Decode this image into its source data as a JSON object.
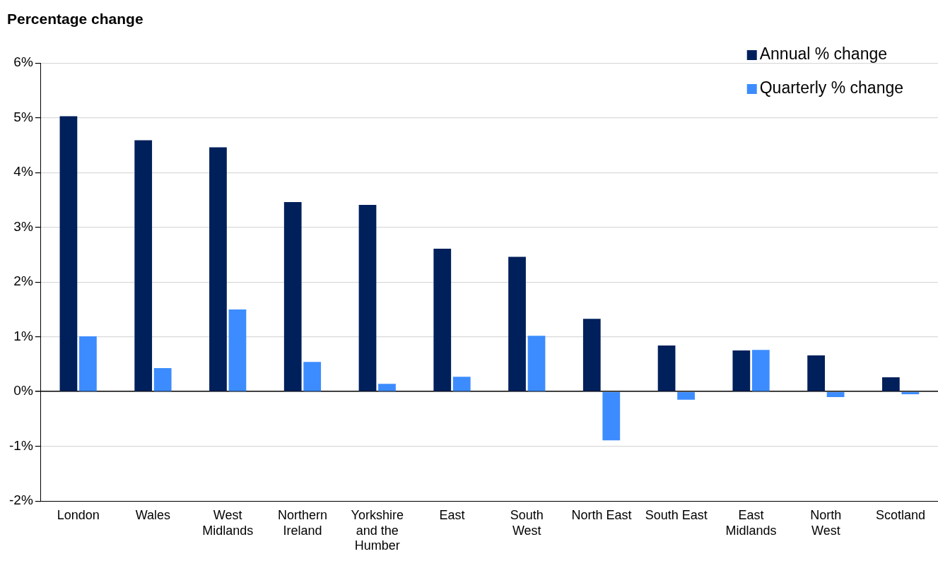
{
  "chart_data": {
    "type": "bar",
    "title": "Percentage change",
    "categories": [
      "London",
      "Wales",
      "West\nMidlands",
      "Northern\nIreland",
      "Yorkshire\nand the\nHumber",
      "East",
      "South\nWest",
      "North East",
      "South East",
      "East\nMidlands",
      "North\nWest",
      "Scotland"
    ],
    "series": [
      {
        "name": "Annual % change",
        "color": "#00205b",
        "values": [
          5.03,
          4.59,
          4.46,
          3.46,
          3.41,
          2.61,
          2.46,
          1.33,
          0.84,
          0.75,
          0.66,
          0.26
        ]
      },
      {
        "name": "Quarterly % change",
        "color": "#3c8cff",
        "values": [
          1.01,
          0.43,
          1.5,
          0.54,
          0.14,
          0.27,
          1.02,
          -0.89,
          -0.15,
          0.76,
          -0.1,
          -0.05
        ]
      }
    ],
    "ylim": [
      -2,
      6
    ],
    "yticks": [
      {
        "value": -2,
        "label": "-2%"
      },
      {
        "value": -1,
        "label": "-1%"
      },
      {
        "value": 0,
        "label": "0%"
      },
      {
        "value": 1,
        "label": "1%"
      },
      {
        "value": 2,
        "label": "2%"
      },
      {
        "value": 3,
        "label": "3%"
      },
      {
        "value": 4,
        "label": "4%"
      },
      {
        "value": 5,
        "label": "5%"
      },
      {
        "value": 6,
        "label": "6%"
      }
    ],
    "grid": "y",
    "legend": "top right"
  }
}
